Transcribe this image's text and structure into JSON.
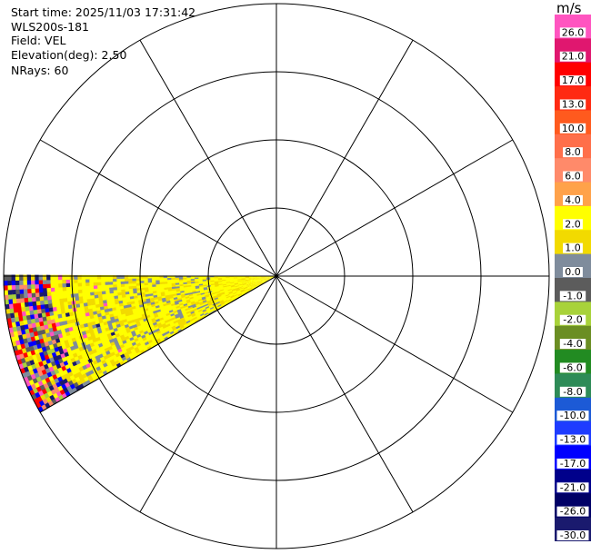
{
  "header": {
    "start_time": "Start time: 2025/11/03 17:31:42",
    "instrument": "WLS200s-181",
    "field": "Field: VEL",
    "elevation": "Elevation(deg): 2.50",
    "nrays": "NRays: 60"
  },
  "colorbar": {
    "unit": "m/s",
    "labels": [
      "26.0",
      "21.0",
      "17.0",
      "13.0",
      "10.0",
      "8.0",
      "6.0",
      "4.0",
      "2.0",
      "1.0",
      "0.0",
      "-1.0",
      "-2.0",
      "-4.0",
      "-6.0",
      "-8.0",
      "-10.0",
      "-13.0",
      "-17.0",
      "-21.0",
      "-26.0",
      "-30.0"
    ],
    "colors": [
      "#ff55c0",
      "#e0176f",
      "#ff0000",
      "#ff2a12",
      "#ff5a1e",
      "#ff6f4a",
      "#ff8a6a",
      "#ffa24a",
      "#ffff00",
      "#f2da00",
      "#7f8c9c",
      "#5c5c5c",
      "#a8d23a",
      "#6b8e23",
      "#228b22",
      "#2e8b57",
      "#1c5ad6",
      "#1e3cff",
      "#0000ff",
      "#00008b",
      "#000066",
      "#1a1a6e"
    ]
  },
  "chart_data": {
    "type": "ppi",
    "field": "VEL",
    "units": "m/s",
    "elevation_deg": 2.5,
    "n_rays": 60,
    "data_sector_deg": [
      240,
      270
    ],
    "range_rings": 4,
    "spoke_angles_deg": [
      0,
      30,
      60,
      90,
      120,
      150,
      180,
      210,
      240,
      270,
      300,
      330
    ],
    "dominant_values_ms": [
      1.0,
      2.0,
      0.0
    ],
    "colorbar_range": [
      -30,
      26
    ]
  }
}
